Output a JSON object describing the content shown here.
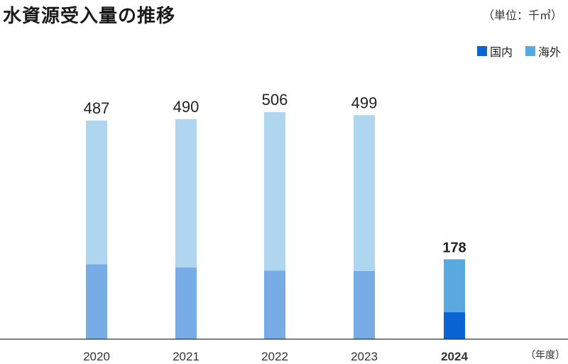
{
  "title": "水資源受入量の推移",
  "unit": "（単位：千㎥）",
  "x_unit": "（年度）",
  "colors": {
    "domestic_current": "#0a64d2",
    "overseas_current": "#5aaae0",
    "domestic_past": "#78ace6",
    "overseas_past": "#b0d6ef",
    "axis": "#333333"
  },
  "chart_data": {
    "type": "bar",
    "stacked": true,
    "categories": [
      "2020",
      "2021",
      "2022",
      "2023",
      "2024"
    ],
    "highlight_category": "2024",
    "series": [
      {
        "name": "国内",
        "values": [
          167,
          160,
          153,
          152,
          60
        ]
      },
      {
        "name": "海外",
        "values": [
          320,
          330,
          353,
          347,
          118
        ]
      }
    ],
    "totals": [
      487,
      490,
      506,
      499,
      178
    ],
    "ylim": [
      0,
      550
    ],
    "grid": false,
    "legend": "top-right",
    "title": "水資源受入量の推移",
    "xlabel": "（年度）",
    "ylabel": ""
  }
}
